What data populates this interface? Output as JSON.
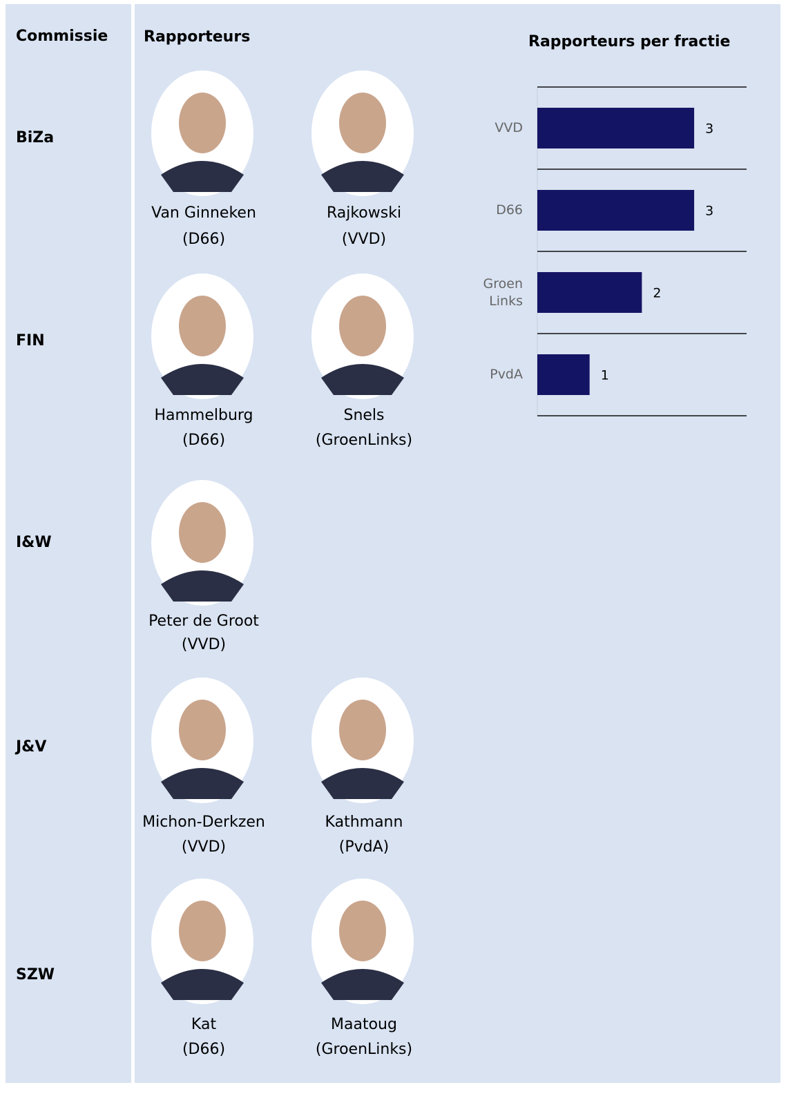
{
  "table": {
    "headers": [
      "Commissie",
      "Rapporteurs"
    ],
    "rows": [
      {
        "commissie": "BiZa",
        "rapporteurs": [
          {
            "name": "Van Ginneken",
            "party": "(D66)"
          },
          {
            "name": "Rajkowski",
            "party": "(VVD)"
          }
        ]
      },
      {
        "commissie": "FIN",
        "rapporteurs": [
          {
            "name": "Hammelburg",
            "party": "(D66)"
          },
          {
            "name": "Snels",
            "party": "(GroenLinks)"
          }
        ]
      },
      {
        "commissie": "I&W",
        "rapporteurs": [
          {
            "name": "Peter de Groot",
            "party": "(VVD)"
          }
        ]
      },
      {
        "commissie": "J&V",
        "rapporteurs": [
          {
            "name": "Michon-Derkzen",
            "party": "(VVD)"
          },
          {
            "name": "Kathmann",
            "party": "(PvdA)"
          }
        ]
      },
      {
        "commissie": "SZW",
        "rapporteurs": [
          {
            "name": "Kat",
            "party": "(D66)"
          },
          {
            "name": "Maatoug",
            "party": "(GroenLinks)"
          }
        ]
      }
    ]
  },
  "chart_data": {
    "type": "bar",
    "orientation": "horizontal",
    "title": "Rapporteurs per fractie",
    "categories": [
      "VVD",
      "D66",
      "Groen Links",
      "PvdA"
    ],
    "values": [
      3,
      3,
      2,
      1
    ],
    "color": "#141464"
  }
}
